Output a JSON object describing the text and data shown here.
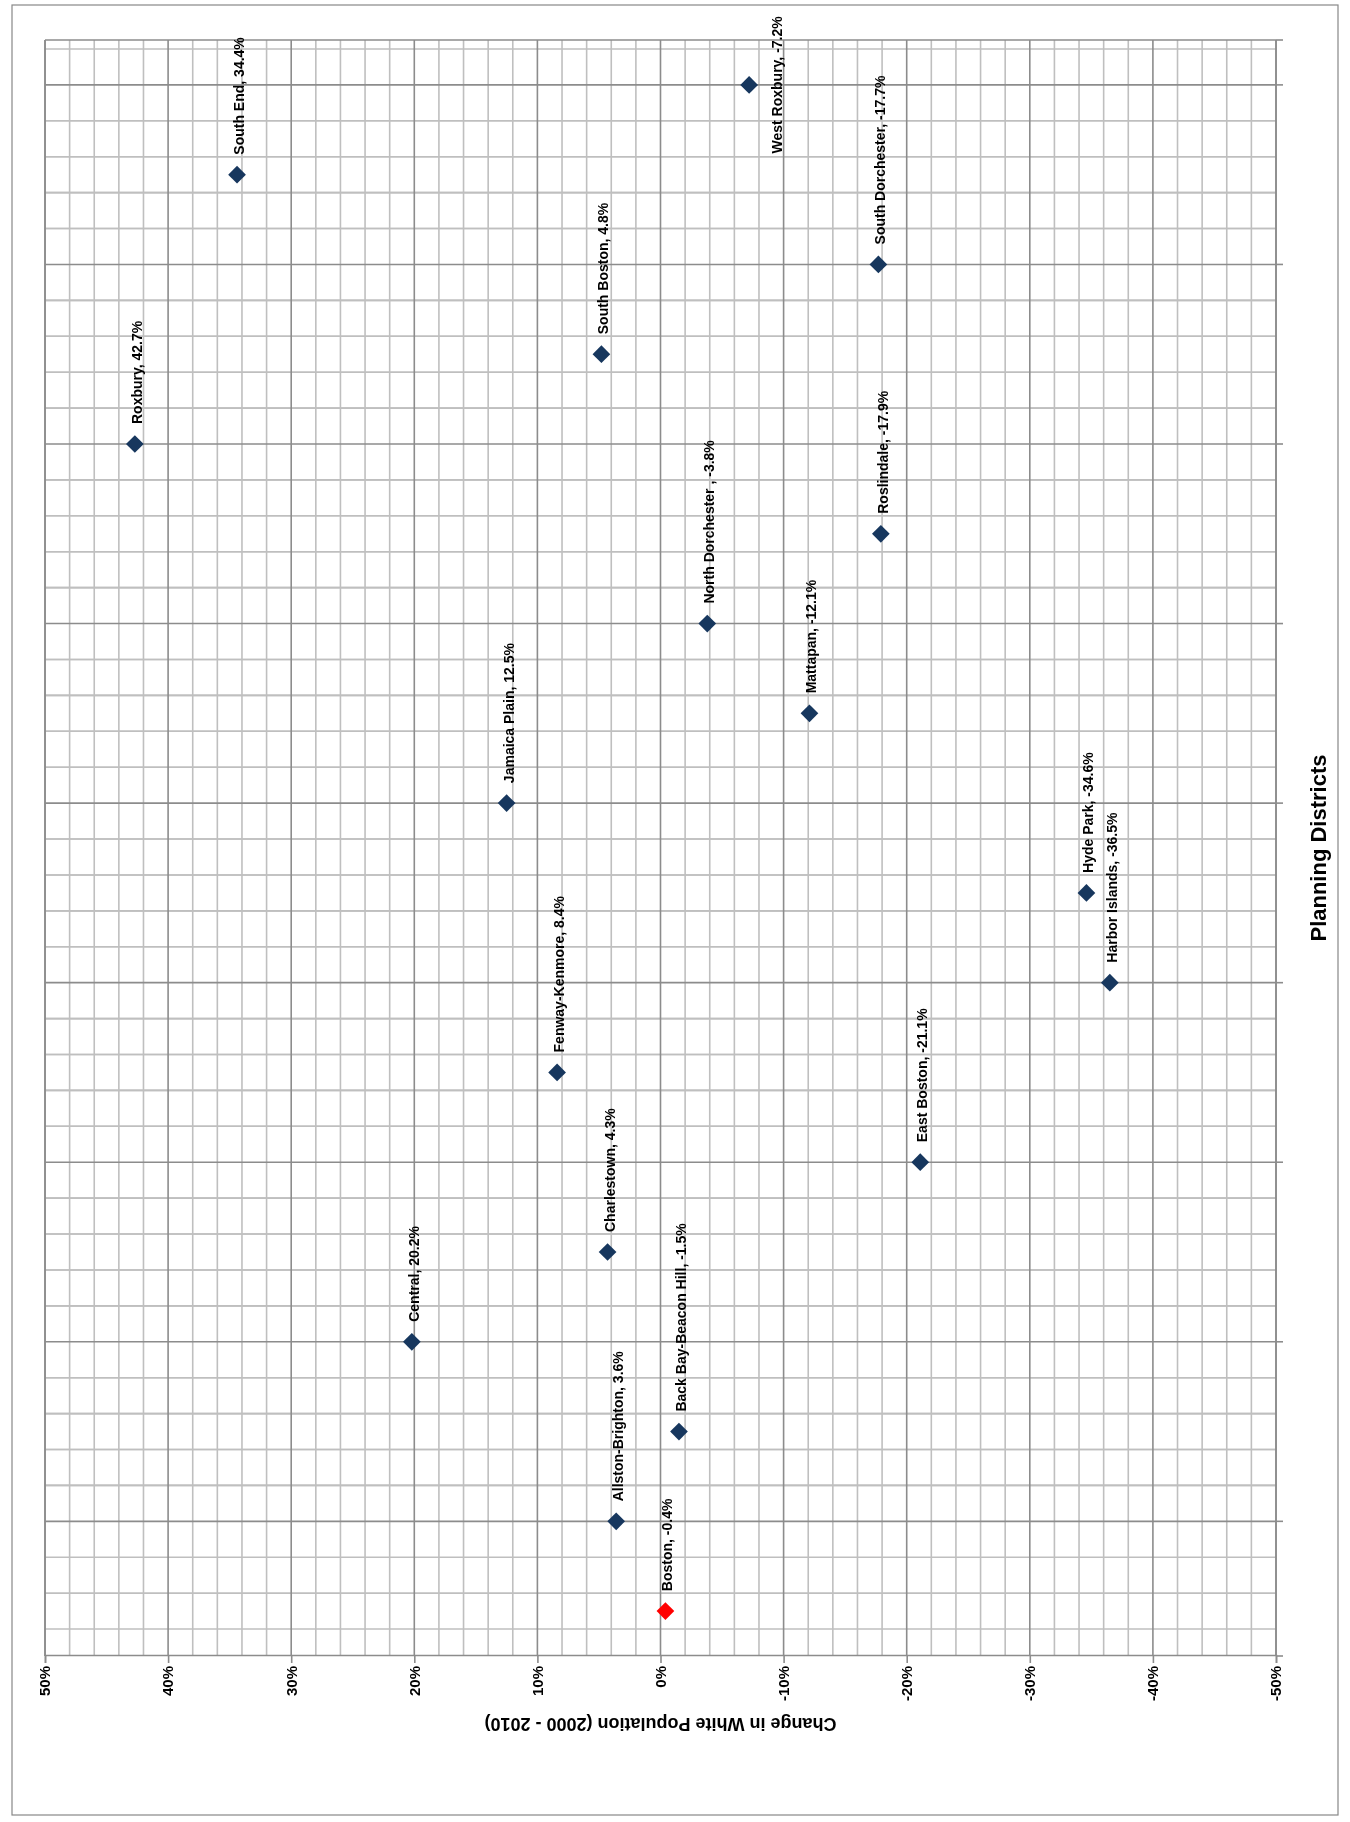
{
  "chart_data": {
    "type": "scatter",
    "orientation": "horizontal",
    "xlabel": "Change in White Population (2000 - 2010)",
    "ylabel": "Planning Districts",
    "categories": [
      null,
      null,
      null,
      null,
      null,
      null,
      null,
      null,
      null,
      null,
      null,
      null,
      null,
      null,
      null,
      null,
      null,
      null
    ],
    "values": [
      -7.2,
      34.4,
      -17.7,
      4.8,
      42.7,
      -17.9,
      -3.8,
      -12.1,
      12.5,
      -34.6,
      -36.5,
      8.4,
      -21.1,
      4.3,
      20.2,
      -1.5,
      3.6,
      -0.4
    ],
    "value_labels": [
      "West Roxbury, -7.2%",
      "South End, 34.4%",
      "South Dorchester, -17.7%",
      "South Boston, 4.8%",
      "Roxbury, 42.7%",
      "Roslindale, -17.9%",
      "North Dorchester , -3.8%",
      "Mattapan, -12.1%",
      "Jamaica Plain, 12.5%",
      "Hyde Park, -34.6%",
      "Harbor Islands, -36.5%",
      "Fenway-Kenmore, 8.4%",
      "East Boston, -21.1%",
      "Charlestown, 4.3%",
      "Central, 20.2%",
      "Back Bay-Beacon Hill, -1.5%",
      "Allston-Brighton, 3.6%",
      "Boston, -0.4%"
    ],
    "colors": [
      "#17375e",
      "#17375e",
      "#17375e",
      "#17375e",
      "#17375e",
      "#17375e",
      "#17375e",
      "#17375e",
      "#17375e",
      "#17375e",
      "#17375e",
      "#17375e",
      "#17375e",
      "#17375e",
      "#17375e",
      "#17375e",
      "#17375e",
      "#ff0000"
    ],
    "marker": "diamond",
    "xlim": [
      50,
      -50
    ],
    "xticks": [
      {
        "value": 50,
        "label": "50%"
      },
      {
        "value": 40,
        "label": "40%"
      },
      {
        "value": 30,
        "label": "30%"
      },
      {
        "value": 20,
        "label": "20%"
      },
      {
        "value": 10,
        "label": "10%"
      },
      {
        "value": 0,
        "label": "0%"
      },
      {
        "value": -10,
        "label": "-10%"
      },
      {
        "value": -20,
        "label": "-20%"
      },
      {
        "value": -30,
        "label": "-30%"
      },
      {
        "value": -40,
        "label": "-40%"
      },
      {
        "value": -50,
        "label": "-50%"
      }
    ],
    "grid": true,
    "tick_labels": "x"
  }
}
